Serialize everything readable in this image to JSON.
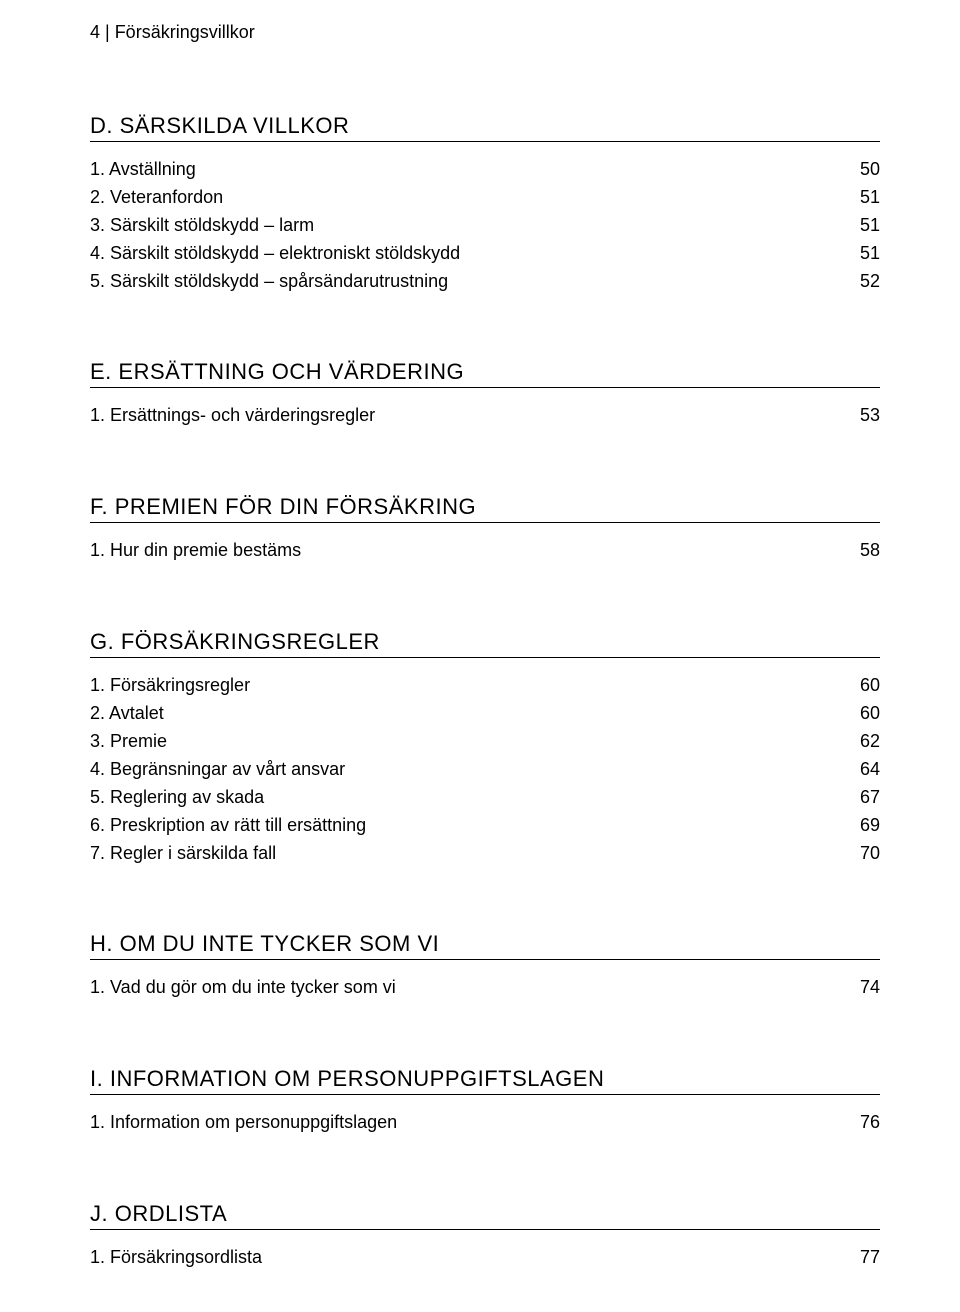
{
  "header": "4 | Försäkringsvillkor",
  "sections": [
    {
      "title": "D. SÄRSKILDA VILLKOR",
      "items": [
        {
          "label": "1. Avställning",
          "page": "50"
        },
        {
          "label": "2. Veteranfordon",
          "page": "51"
        },
        {
          "label": "3. Särskilt stöldskydd – larm",
          "page": "51"
        },
        {
          "label": "4. Särskilt stöldskydd – elektroniskt stöldskydd",
          "page": "51"
        },
        {
          "label": "5. Särskilt stöldskydd – spårsändarutrustning",
          "page": "52"
        }
      ]
    },
    {
      "title": "E. ERSÄTTNING OCH VÄRDERING",
      "items": [
        {
          "label": "1. Ersättnings- och värderingsregler",
          "page": "53"
        }
      ]
    },
    {
      "title": "F. PREMIEN FÖR DIN FÖRSÄKRING",
      "items": [
        {
          "label": "1. Hur din premie bestäms",
          "page": "58"
        }
      ]
    },
    {
      "title": "G. FÖRSÄKRINGSREGLER",
      "items": [
        {
          "label": "1. Försäkringsregler",
          "page": "60"
        },
        {
          "label": "2. Avtalet",
          "page": "60"
        },
        {
          "label": "3. Premie",
          "page": "62"
        },
        {
          "label": "4. Begränsningar av vårt ansvar",
          "page": "64"
        },
        {
          "label": "5. Reglering av skada",
          "page": "67"
        },
        {
          "label": "6. Preskription av rätt till ersättning",
          "page": "69"
        },
        {
          "label": "7. Regler i särskilda fall",
          "page": "70"
        }
      ]
    },
    {
      "title": "H. OM DU INTE TYCKER SOM VI",
      "items": [
        {
          "label": "1. Vad du gör om du inte tycker som vi",
          "page": "74"
        }
      ]
    },
    {
      "title": "I. INFORMATION OM PERSONUPPGIFTSLAGEN",
      "items": [
        {
          "label": "1. Information om personuppgiftslagen",
          "page": "76"
        }
      ]
    },
    {
      "title": "J. ORDLISTA",
      "items": [
        {
          "label": "1. Försäkringsordlista",
          "page": "77"
        }
      ]
    }
  ]
}
